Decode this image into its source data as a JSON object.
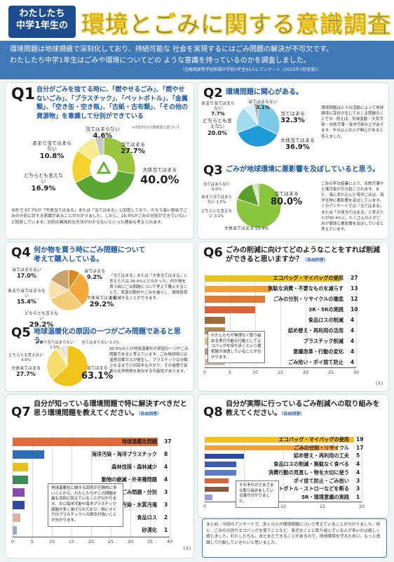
{
  "header": {
    "badge_l1": "わたしたち",
    "badge_l2": "中学1年生の",
    "title": "環境とごみに関する意識調査",
    "intro1": "環境問題は地球規模で深刻化しており、持続可能な 社会を実現するにはごみ問題の解決が不可欠です。",
    "intro2": "わたしたち中学1年生はごみや環境についてどの ような意識を持っているのかを調査しました。",
    "source": "（北嶋西高等学校附属中学校1年生65人にアンケート（2025年3月実施））"
  },
  "q1": {
    "num": "Q1",
    "title": "自分がごみを捨てる時に、「燃やせるごみ」、「燃やせないごみ」、「プラスチック」、「ペットボトル」、「金属類」、「空き缶・空き瓶」、「古紙・古布類」、「その他の資源物」を意識して分別ができている",
    "small": "※市町村の分類規準に基づいて",
    "summary": "合計で 67.7%が「大体当てはまる」または「当てはまる」と回答しており、かなり高い割合でごみの分別に対する意識があることがわかりました。しかし、15.4%がごみの分別ができていないと回答しています。分別の具体的な方法がわからないといった理由も考えられます。"
  },
  "q2": {
    "num": "Q2",
    "title": "環境問題に関心がある。",
    "text": "環境問題は人々の活動によって地球環境に変化が生じておこる問題のことです。例えば、気候変動・大気汚染・水質汚濁・海洋汚染などがあります。半分以上の人が関心があると答えました。"
  },
  "q3": {
    "num": "Q3",
    "title": "ごみが地球環境に悪影響を及ぼしていると思う。",
    "text": "ごみの不法投棄により、水質汚濁や土壌汚染が引き起こされます。また、海に流れ込んだ海洋ごみは、海洋生物に悪影響を及ぼしています。このアンケートでは「当てはまる」または「大体当てはまる」と答えた人が95.4%と、たくさんの人がごみが環境に悪影響を及ぼしていると考えています。"
  },
  "q4": {
    "num": "Q4",
    "title": "何か物を買う時にごみ問題について考えて購入している。",
    "text": "「当てはまる」または「大体当てはまる」と答えた人は 38.4%と少なかった。何か物を買う時にごみ問題について考えて購入することで、資源の節約やごみを減らし、環境負荷を軽減することができます。"
  },
  "q5": {
    "num": "Q5",
    "title": "地球温暖化の原因の一つがごみ問題であると思う。",
    "text": "90.8%の人が地球温暖化の原因の一つがごみ問題であると考えています。ごみ焼却時には温室効果ガスが発生し、プラスチックは分解されるまでに何百年もかかり、その過程で有害な化学物質を放出する可能性があります。"
  },
  "q6": {
    "num": "Q6",
    "title": "ごみの削減に向けてどのようなことをすれば削減ができると思いますか？",
    "tag": "（自由回答）",
    "axis_unit": "（人）",
    "note": "わたしたちが無理なく取り組める実行可能な行動としてエコバッグを持ち歩くという選択肢が浸透していることが分かります。"
  },
  "q7": {
    "num": "Q7",
    "title": "自分が知っている環境問題で特に解決すべきだと思う環境問題を教えてください。",
    "tag": "（自由回答）",
    "axis_unit": "（人）",
    "note": "地球温暖化に関する回答が圧倒的に多いことから、わたしたちがこの問題を最も深刻に捉えていることが分かります。次に海洋汚染や海洋プラスチック問題が多く挙げられており、特にマイクロプラスチックへの懸念が強いことが分かります。"
  },
  "q8": {
    "num": "Q8",
    "title": "自分が実際に行っているごみ削減への取り組みを教えてください。",
    "tag": "（自由回答）",
    "axis_unit": "（人）",
    "note": "それぞれがさまざまな取り組みをしている事が分かりました。"
  },
  "footer": {
    "text": "まとめ／今回のアンケートで、多くの人が環境問題について考えていることが分かりました。特に、ごみの分別やエコバッグを使うことなど、身近なことに取り組んでいる人が多いのは嬉しく感じました。わたしたちも、まだまだできることがあるので、地球環境を守るために、もっと意識して行動していきたいと思いました。"
  },
  "chart_data": [
    {
      "id": "q1",
      "type": "pie",
      "categories": [
        "当てはまる",
        "大体当てはまる",
        "どちらとも言えない",
        "あまり当てはまらない",
        "当てはまらない"
      ],
      "values": [
        27.7,
        40.0,
        16.9,
        10.8,
        4.6
      ],
      "colors": [
        "#9bc53d",
        "#5aa832",
        "#f2d22e",
        "#f7ec8f",
        "#c8c8c8"
      ]
    },
    {
      "id": "q2",
      "type": "pie",
      "categories": [
        "当てはまる",
        "大体当てはまる",
        "どちらとも言えない",
        "あまり当てはまらない",
        "当てはまらない"
      ],
      "values": [
        32.3,
        36.9,
        20.0,
        7.7,
        3.1
      ],
      "colors": [
        "#7ec9e6",
        "#1f9ad6",
        "#9fdaf0",
        "#d6eef7",
        "#b0b0b0"
      ]
    },
    {
      "id": "q3",
      "type": "pie",
      "categories": [
        "当てはまる",
        "大体当てはまる",
        "どちらとも言えない",
        "あまり当てはまらない",
        "当てはまらない"
      ],
      "values": [
        80.0,
        15.4,
        3.1,
        1.5,
        0.0
      ],
      "colors": [
        "#8cc63f",
        "#5c9e2e",
        "#d6e8a8",
        "#b9b9b9",
        "#e0e0e0"
      ]
    },
    {
      "id": "q4",
      "type": "pie",
      "categories": [
        "当てはまる",
        "大体当てはまる",
        "どちらとも言えない",
        "あまり当てはまらない",
        "当てはまらない"
      ],
      "values": [
        9.2,
        29.2,
        29.2,
        15.4,
        17.0
      ],
      "colors": [
        "#d88a1f",
        "#f2a83a",
        "#f5cc7a",
        "#f8e0b0",
        "#c9a36b"
      ]
    },
    {
      "id": "q5",
      "type": "pie",
      "categories": [
        "当てはまる",
        "大体当てはまる",
        "どちらとも言えない",
        "あまり当てはまらない",
        "当てはまらない"
      ],
      "values": [
        63.1,
        27.7,
        4.6,
        1.5,
        3.1
      ],
      "colors": [
        "#f0c419",
        "#f6dc6b",
        "#fbeeb0",
        "#bdbdbd",
        "#e5e5e5"
      ]
    },
    {
      "id": "q6",
      "type": "bar",
      "categories": [
        "エコバッグ・マイバッグの使用",
        "無駄な消費・不要なものを減らす",
        "ごみの分別・リサイクルの徹底",
        "3R・5Rの実践",
        "食品ロスの削減",
        "詰め替え・再利用の活用",
        "プラスチック削減",
        "意識改革・行動の変化",
        "ごみ拾い・ポイ捨て防止"
      ],
      "values": [
        27,
        13,
        12,
        10,
        4,
        4,
        4,
        4,
        4
      ],
      "colors": [
        "#e8c020",
        "#f2a03a",
        "#e07a32",
        "#d9643a",
        "#9e6a3a",
        "#b08a5a",
        "#d8c080",
        "#aaa07a",
        "#c8c0a8"
      ],
      "xlim": [
        0,
        30
      ],
      "ticks": [
        0,
        5,
        10,
        15,
        20,
        25,
        30
      ]
    },
    {
      "id": "q7",
      "type": "bar",
      "categories": [
        "地球温暖化問題",
        "海洋汚染・海洋プラスチック",
        "森林伐採・森林減少",
        "動物の絶滅・外来種問題",
        "ごみ問題・分別",
        "大気汚染・水質汚濁",
        "食品ロス",
        "砂漠化"
      ],
      "values": [
        37,
        8,
        4,
        4,
        3,
        3,
        2,
        1
      ],
      "colors": [
        "#e06a3a",
        "#2e6db8",
        "#e8c020",
        "#3a8a5a",
        "#8a4ab0",
        "#2e4aa0",
        "#e0b0a0",
        "#9aa6c8"
      ],
      "xlim": [
        0,
        40
      ],
      "ticks": [
        0,
        5,
        10,
        15,
        20,
        25,
        30,
        35,
        40
      ]
    },
    {
      "id": "q8",
      "type": "bar",
      "categories": [
        "エコバッグ・マイバッグの使用",
        "ごみの分別・リサイクル",
        "詰め替え・再利用の工夫",
        "食品ロスの削減・無駄なく食べる",
        "消費行動の見直し・物を大切に使う",
        "ポイ捨て防止・ごみ拾い",
        "ペットボトル・ストローなどを断る",
        "5R・環境意識の実践"
      ],
      "values": [
        19,
        17,
        5,
        4,
        4,
        3,
        3,
        1
      ],
      "colors": [
        "#f2c020",
        "#f2a03a",
        "#2e4aa0",
        "#3a5ab8",
        "#5a7ac8",
        "#d9643a",
        "#8a5a3a",
        "#9a9ad0"
      ],
      "xlim": [
        0,
        20
      ],
      "ticks": [
        0,
        5,
        10,
        15,
        20
      ]
    }
  ]
}
